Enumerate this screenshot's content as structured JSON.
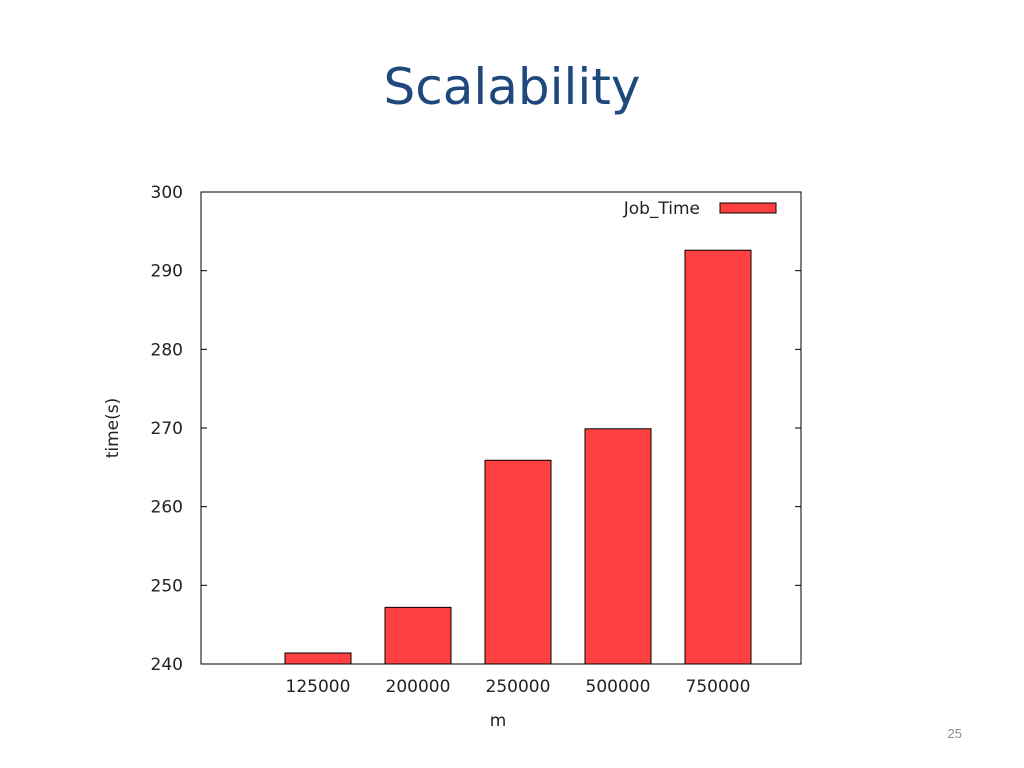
{
  "slide": {
    "title": "Scalability",
    "page_number": "25"
  },
  "chart_data": {
    "type": "bar",
    "categories": [
      "125000",
      "200000",
      "250000",
      "500000",
      "750000"
    ],
    "series": [
      {
        "name": "Job_Time",
        "values": [
          241.4,
          247.2,
          265.9,
          269.9,
          292.6
        ],
        "color": "#ff4040"
      }
    ],
    "xlabel": "m",
    "ylabel": "time(s)",
    "ylim": [
      240,
      300
    ],
    "yticks": [
      240,
      250,
      260,
      270,
      280,
      290,
      300
    ],
    "legend_position": "top-right",
    "grid": false
  }
}
